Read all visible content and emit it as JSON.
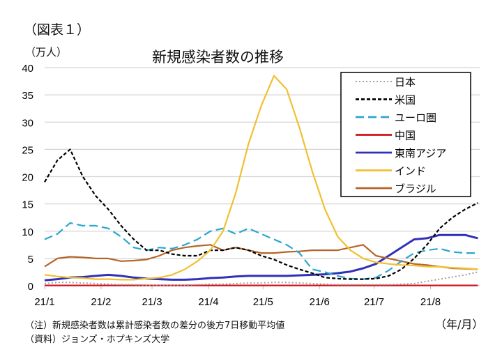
{
  "figure_label": "（図表１）",
  "note": "（注）新規感染者数は累計感染者数の差分の後方7日移動平均値",
  "source": "（資料）ジョンズ・ホプキンズ大学",
  "chart_data": {
    "type": "line",
    "title": "新規感染者数の推移",
    "ylabel": "（万人）",
    "xlabel": "（年/月）",
    "ylim": [
      0,
      40
    ],
    "yticks": [
      0,
      5,
      10,
      15,
      20,
      25,
      30,
      35,
      40
    ],
    "xlim": [
      "2021-01-01",
      "2021-08-28"
    ],
    "xtick_dates": [
      "2021-01-01",
      "2021-02-01",
      "2021-03-01",
      "2021-04-01",
      "2021-05-01",
      "2021-06-01",
      "2021-07-01",
      "2021-08-01"
    ],
    "xtick_labels": [
      "21/1",
      "21/2",
      "21/3",
      "21/4",
      "21/5",
      "21/6",
      "21/7",
      "21/8"
    ],
    "grid": "horizontal",
    "legend_position": "top-right",
    "x": [
      "2021-01-01",
      "2021-01-08",
      "2021-01-15",
      "2021-01-22",
      "2021-01-29",
      "2021-02-05",
      "2021-02-12",
      "2021-02-19",
      "2021-02-26",
      "2021-03-05",
      "2021-03-12",
      "2021-03-19",
      "2021-03-26",
      "2021-04-02",
      "2021-04-09",
      "2021-04-16",
      "2021-04-23",
      "2021-04-30",
      "2021-05-07",
      "2021-05-14",
      "2021-05-21",
      "2021-05-28",
      "2021-06-04",
      "2021-06-11",
      "2021-06-18",
      "2021-06-25",
      "2021-07-02",
      "2021-07-09",
      "2021-07-16",
      "2021-07-23",
      "2021-07-30",
      "2021-08-06",
      "2021-08-13",
      "2021-08-20",
      "2021-08-27"
    ],
    "series": [
      {
        "name": "日本",
        "color": "#a0a0a0",
        "style": "dotted",
        "values": [
          0.4,
          0.6,
          0.6,
          0.5,
          0.4,
          0.3,
          0.2,
          0.2,
          0.1,
          0.1,
          0.1,
          0.1,
          0.2,
          0.3,
          0.3,
          0.4,
          0.5,
          0.5,
          0.6,
          0.6,
          0.5,
          0.4,
          0.3,
          0.2,
          0.2,
          0.2,
          0.2,
          0.2,
          0.3,
          0.4,
          0.8,
          1.2,
          1.6,
          2.0,
          2.5
        ]
      },
      {
        "name": "米国",
        "color": "#000000",
        "style": "dashed",
        "values": [
          19,
          23,
          25,
          20,
          16.5,
          14,
          11,
          8.5,
          6.5,
          6.5,
          5.8,
          5.5,
          5.5,
          6.5,
          6.5,
          7,
          6.5,
          5.5,
          4.8,
          3.8,
          3,
          2.3,
          1.5,
          1.3,
          1.2,
          1.2,
          1.3,
          1.8,
          3,
          5,
          7.5,
          10.5,
          12.5,
          14,
          15.2
        ]
      },
      {
        "name": "ユーロ圏",
        "color": "#2aa6cf",
        "style": "longdash",
        "values": [
          8.5,
          9.5,
          11.5,
          11,
          11,
          10.5,
          9,
          7,
          6.5,
          7,
          6.8,
          7.5,
          8.5,
          10,
          10.5,
          9.5,
          10.5,
          9.5,
          8.5,
          7.5,
          6,
          3,
          2.5,
          1.8,
          1.3,
          1.2,
          1.5,
          2.8,
          4.5,
          6,
          6.5,
          6.8,
          6.2,
          6,
          6
        ]
      },
      {
        "name": "中国",
        "color": "#d0121b",
        "style": "solid",
        "values": [
          0.05,
          0.05,
          0.05,
          0.05,
          0.05,
          0.05,
          0.05,
          0.05,
          0.05,
          0.05,
          0.05,
          0.05,
          0.05,
          0.05,
          0.05,
          0.05,
          0.05,
          0.05,
          0.05,
          0.05,
          0.05,
          0.05,
          0.05,
          0.05,
          0.05,
          0.05,
          0.05,
          0.05,
          0.05,
          0.05,
          0.05,
          0.05,
          0.05,
          0.05,
          0.05
        ]
      },
      {
        "name": "東南アジア",
        "color": "#3030b8",
        "style": "solid",
        "values": [
          1,
          1.2,
          1.5,
          1.6,
          1.8,
          2,
          1.8,
          1.5,
          1.3,
          1.2,
          1.1,
          1.1,
          1.2,
          1.4,
          1.5,
          1.7,
          1.8,
          1.8,
          1.8,
          1.8,
          1.9,
          2,
          2.1,
          2.3,
          2.6,
          3.2,
          4,
          5.5,
          7,
          8.5,
          8.7,
          9.3,
          9.3,
          9.3,
          8.7
        ]
      },
      {
        "name": "インド",
        "color": "#f0c030",
        "style": "solid",
        "values": [
          2,
          1.7,
          1.5,
          1.4,
          1.2,
          1.2,
          1.1,
          1.1,
          1.3,
          1.5,
          2,
          3,
          4.5,
          6.5,
          10,
          17,
          26,
          33,
          38.5,
          36,
          29,
          21,
          14,
          9,
          6.5,
          5,
          4.3,
          4,
          3.8,
          3.7,
          3.5,
          3.5,
          3.3,
          3.2,
          3
        ]
      },
      {
        "name": "ブラジル",
        "color": "#b5652a",
        "style": "solid",
        "values": [
          3.5,
          5,
          5.3,
          5.2,
          5,
          5,
          4.5,
          4.6,
          4.8,
          5.5,
          6.5,
          7,
          7.3,
          7.5,
          6.5,
          7,
          6.5,
          6,
          6,
          6.2,
          6.3,
          6.5,
          6.5,
          6.5,
          7,
          7.5,
          5.5,
          5,
          4.5,
          4,
          3.8,
          3.5,
          3.2,
          3.1,
          3
        ]
      }
    ]
  }
}
